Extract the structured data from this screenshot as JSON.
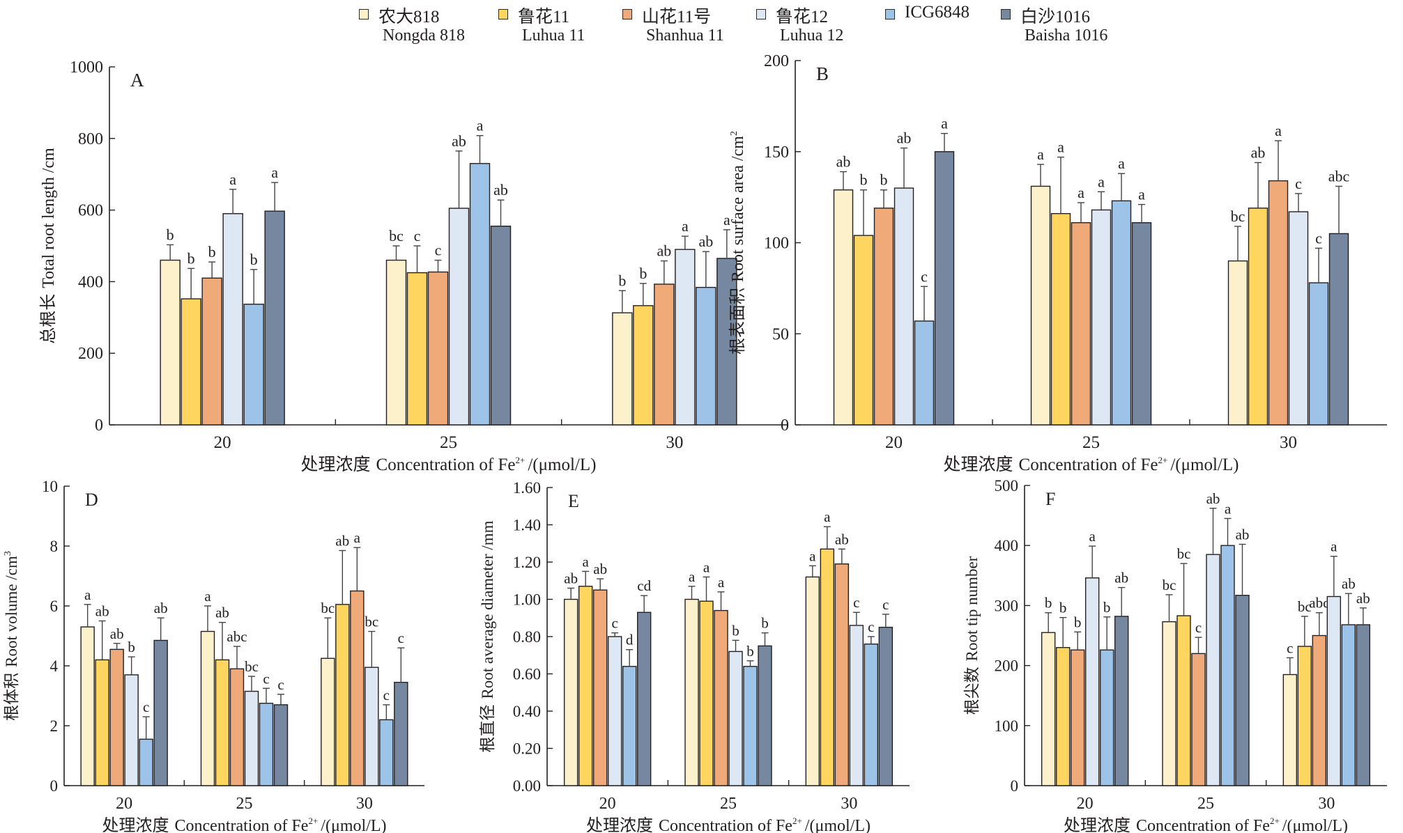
{
  "legend": [
    {
      "name_cn": "农大818",
      "name_en": "Nongda 818",
      "color": "#fdf1cc"
    },
    {
      "name_cn": "鲁花11",
      "name_en": "Luhua 11",
      "color": "#fed55f"
    },
    {
      "name_cn": "山花11号",
      "name_en": "Shanhua 11",
      "color": "#f0aa7a"
    },
    {
      "name_cn": "鲁花12",
      "name_en": "Luhua 12",
      "color": "#dde8f4"
    },
    {
      "name_cn": "ICG6848",
      "name_en": "",
      "color": "#9ec3e8"
    },
    {
      "name_cn": "白沙1016",
      "name_en": "Baisha 1016",
      "color": "#76889f"
    }
  ],
  "chart_data": [
    {
      "panel": "A",
      "type": "bar",
      "ylabel_cn": "总根长",
      "ylabel_en": "Total root length /cm",
      "xlabel_cn": "处理浓度",
      "xlabel_en": "Concentration of Fe",
      "xlabel_sup": "2+",
      "xlabel_unit": "/(μmol/L)",
      "categories": [
        "20",
        "25",
        "30"
      ],
      "ylim": [
        0,
        1000
      ],
      "yticks": [
        "0",
        "200",
        "400",
        "600",
        "800",
        "1000"
      ],
      "values": [
        [
          460,
          352,
          410,
          590,
          337,
          597
        ],
        [
          460,
          425,
          427,
          605,
          730,
          555
        ],
        [
          313,
          333,
          393,
          490,
          384,
          465
        ]
      ],
      "errors": [
        [
          43,
          85,
          45,
          68,
          97,
          80
        ],
        [
          40,
          75,
          33,
          160,
          78,
          73
        ],
        [
          62,
          62,
          65,
          37,
          100,
          80
        ]
      ],
      "letters": [
        [
          "b",
          "b",
          "b",
          "a",
          "b",
          "a"
        ],
        [
          "bc",
          "c",
          "c",
          "ab",
          "a",
          "ab"
        ],
        [
          "b",
          "b",
          "ab",
          "a",
          "ab",
          "a"
        ]
      ]
    },
    {
      "panel": "B",
      "type": "bar",
      "ylabel_cn": "根表面积",
      "ylabel_en": "Root surface area /cm",
      "ylabel_sup": "2",
      "xlabel_cn": "处理浓度",
      "xlabel_en": "Concentration of Fe",
      "xlabel_sup": "2+",
      "xlabel_unit": "/(μmol/L)",
      "categories": [
        "20",
        "25",
        "30"
      ],
      "ylim": [
        0,
        200
      ],
      "yticks": [
        "0",
        "50",
        "100",
        "150",
        "200"
      ],
      "values": [
        [
          129,
          104,
          119,
          130,
          57,
          150
        ],
        [
          131,
          116,
          111,
          118,
          123,
          111
        ],
        [
          90,
          119,
          134,
          117,
          78,
          105
        ]
      ],
      "errors": [
        [
          10,
          25,
          10,
          22,
          19,
          10
        ],
        [
          12,
          31,
          11,
          10,
          15,
          10
        ],
        [
          19,
          25,
          22,
          10,
          19,
          26
        ]
      ],
      "letters": [
        [
          "ab",
          "b",
          "b",
          "ab",
          "c",
          "a"
        ],
        [
          "a",
          "a",
          "a",
          "a",
          "a",
          "a"
        ],
        [
          "bc",
          "ab",
          "a",
          "c",
          "c",
          "abc"
        ]
      ]
    },
    {
      "panel": "D",
      "type": "bar",
      "ylabel_cn": "根体积",
      "ylabel_en": "Root volume /cm",
      "ylabel_sup": "3",
      "xlabel_cn": "处理浓度",
      "xlabel_en": "Concentration of Fe",
      "xlabel_sup": "2+",
      "xlabel_unit": "/(μmol/L)",
      "categories": [
        "20",
        "25",
        "30"
      ],
      "ylim": [
        0,
        10
      ],
      "yticks": [
        "0",
        "2",
        "4",
        "6",
        "8",
        "10"
      ],
      "values": [
        [
          5.3,
          4.2,
          4.55,
          3.7,
          1.55,
          4.85
        ],
        [
          5.15,
          4.2,
          3.9,
          3.15,
          2.75,
          2.7
        ],
        [
          4.25,
          6.05,
          6.5,
          3.95,
          2.2,
          3.45
        ]
      ],
      "errors": [
        [
          0.75,
          1.3,
          0.2,
          0.6,
          0.75,
          0.75
        ],
        [
          0.85,
          1.25,
          0.75,
          0.5,
          0.5,
          0.35
        ],
        [
          1.35,
          1.8,
          1.45,
          1.2,
          0.5,
          1.15
        ]
      ],
      "letters": [
        [
          "a",
          "ab",
          "ab",
          "b",
          "c",
          "ab"
        ],
        [
          "a",
          "ab",
          "abc",
          "bc",
          "c",
          "c"
        ],
        [
          "bc",
          "ab",
          "a",
          "bc",
          "c",
          "c"
        ]
      ]
    },
    {
      "panel": "E",
      "type": "bar",
      "ylabel_cn": "根直径",
      "ylabel_en": "Root average diameter /mm",
      "xlabel_cn": "处理浓度",
      "xlabel_en": "Concentration of Fe",
      "xlabel_sup": "2+",
      "xlabel_unit": "/(μmol/L)",
      "categories": [
        "20",
        "25",
        "30"
      ],
      "ylim": [
        0,
        1.6
      ],
      "yticks": [
        "0.00",
        "0.20",
        "0.40",
        "0.60",
        "0.80",
        "1.00",
        "1.20",
        "1.40",
        "1.60"
      ],
      "values": [
        [
          1.0,
          1.07,
          1.05,
          0.8,
          0.64,
          0.93
        ],
        [
          1.0,
          0.99,
          0.94,
          0.72,
          0.64,
          0.75
        ],
        [
          1.12,
          1.27,
          1.19,
          0.86,
          0.76,
          0.85
        ]
      ],
      "errors": [
        [
          0.06,
          0.08,
          0.06,
          0.02,
          0.09,
          0.09
        ],
        [
          0.07,
          0.13,
          0.1,
          0.06,
          0.03,
          0.07
        ],
        [
          0.06,
          0.12,
          0.08,
          0.07,
          0.04,
          0.07
        ]
      ],
      "letters": [
        [
          "ab",
          "a",
          "ab",
          "c",
          "d",
          "cd"
        ],
        [
          "a",
          "a",
          "a",
          "b",
          "b",
          "b"
        ],
        [
          "a",
          "a",
          "ab",
          "c",
          "c",
          "c"
        ]
      ]
    },
    {
      "panel": "F",
      "type": "bar",
      "ylabel_cn": "根尖数",
      "ylabel_en": "Root tip number",
      "xlabel_cn": "处理浓度",
      "xlabel_en": "Concentration of Fe",
      "xlabel_sup": "2+",
      "xlabel_unit": "/(μmol/L)",
      "categories": [
        "20",
        "25",
        "30"
      ],
      "ylim": [
        0,
        500
      ],
      "yticks": [
        "0",
        "100",
        "200",
        "300",
        "400",
        "500"
      ],
      "values": [
        [
          255,
          230,
          226,
          346,
          226,
          282
        ],
        [
          273,
          283,
          220,
          385,
          400,
          317
        ],
        [
          185,
          232,
          250,
          315,
          268,
          268
        ]
      ],
      "errors": [
        [
          33,
          50,
          30,
          53,
          55,
          48
        ],
        [
          45,
          87,
          27,
          77,
          45,
          85
        ],
        [
          28,
          50,
          38,
          67,
          52,
          28
        ]
      ],
      "letters": [
        [
          "b",
          "b",
          "b",
          "a",
          "b",
          "ab"
        ],
        [
          "bc",
          "bc",
          "c",
          "ab",
          "a",
          "ab"
        ],
        [
          "c",
          "bc",
          "abc",
          "a",
          "ab",
          "ab"
        ]
      ]
    }
  ]
}
